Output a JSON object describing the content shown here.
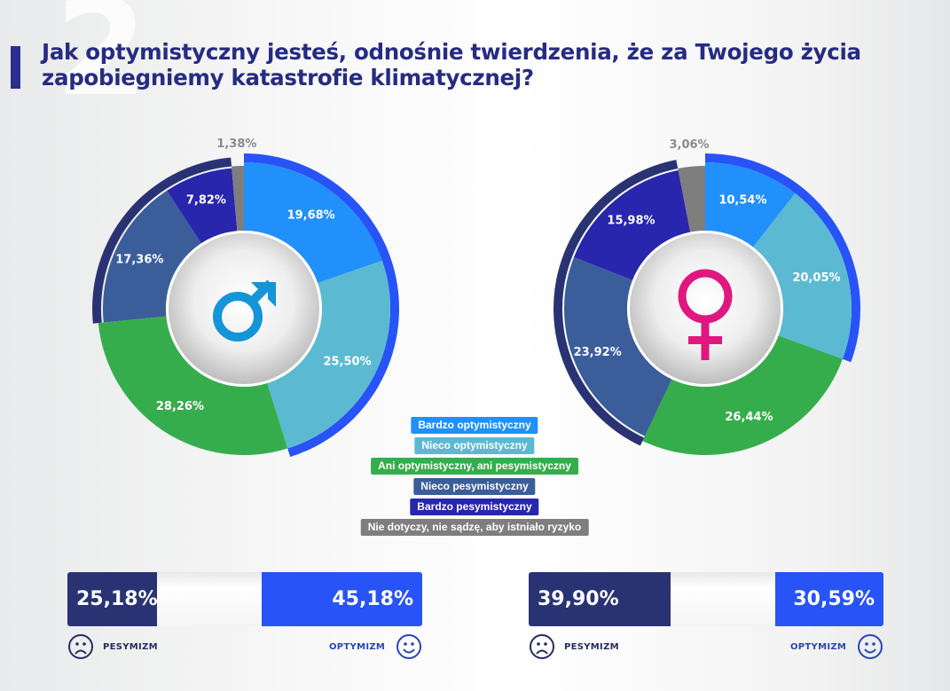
{
  "header": {
    "background_number": "2",
    "title_line1": "Jak optymistyczny jesteś, odnośnie twierdzenia, że za Twojego życia",
    "title_line2": "zapobiegniemy katastrofie klimatycznej?"
  },
  "legend": [
    {
      "label": "Bardzo optymistyczny",
      "color": "#2190fb"
    },
    {
      "label": "Nieco optymistyczny",
      "color": "#5bbad2"
    },
    {
      "label": "Ani optymistyczny, ani pesymistyczny",
      "color": "#36ad4c"
    },
    {
      "label": "Nieco pesymistyczny",
      "color": "#3b5e9a"
    },
    {
      "label": "Bardzo pesymistyczny",
      "color": "#2826ad"
    },
    {
      "label": "Nie dotyczy, nie sądzę, aby istniało ryzyko",
      "color": "#7e7e7e"
    }
  ],
  "chart_data": [
    {
      "type": "pie",
      "title": "Mężczyźni",
      "center_icon": "male-symbol-icon",
      "icon_color": "#1395d8",
      "categories": [
        "Bardzo optymistyczny",
        "Nieco optymistyczny",
        "Ani optymistyczny, ani pesymistyczny",
        "Nieco pesymistyczny",
        "Bardzo pesymistyczny",
        "Nie dotyczy, nie sądzę, aby istniało ryzyko"
      ],
      "values": [
        19.68,
        25.5,
        28.26,
        17.36,
        7.82,
        1.38
      ],
      "labels": [
        "19,68%",
        "25,50%",
        "28,26%",
        "17,36%",
        "7,82%",
        "1,38%"
      ]
    },
    {
      "type": "pie",
      "title": "Kobiety",
      "center_icon": "female-symbol-icon",
      "icon_color": "#e0177f",
      "categories": [
        "Bardzo optymistyczny",
        "Nieco optymistyczny",
        "Ani optymistyczny, ani pesymistyczny",
        "Nieco pesymistyczny",
        "Bardzo pesymistyczny",
        "Nie dotyczy, nie sądzę, aby istniało ryzyko"
      ],
      "values": [
        10.54,
        20.05,
        26.44,
        23.92,
        15.98,
        3.06
      ],
      "labels": [
        "10,54%",
        "20,05%",
        "26,44%",
        "23,92%",
        "15,98%",
        "3,06%"
      ]
    }
  ],
  "summary": [
    {
      "pessimism": 25.18,
      "pessimism_label": "25,18%",
      "optimism": 45.18,
      "optimism_label": "45,18%"
    },
    {
      "pessimism": 39.9,
      "pessimism_label": "39,90%",
      "optimism": 30.59,
      "optimism_label": "30,59%"
    }
  ],
  "captions": {
    "pessimism": "PESYMIZM",
    "optimism": "OPTYMIZM"
  },
  "colors": {
    "pessimism": "#293374",
    "optimism": "#2753f7",
    "title": "#262c82",
    "caption_pes": "#262c5e",
    "caption_opt": "#2a44b8"
  }
}
